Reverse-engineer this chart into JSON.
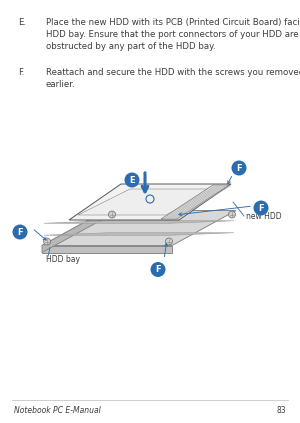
{
  "page_number": "83",
  "footer_left": "Notebook PC E-Manual",
  "background_color": "#ffffff",
  "text_color": "#3d3d3d",
  "blue_color": "#2b6cb0",
  "gray_line": "#999999",
  "label_e": "E",
  "label_f": "F",
  "item_e_letter": "E.",
  "item_f_letter": "F.",
  "item_e_text": "Place the new HDD with its PCB (Printed Circuit Board) facing the\nHDD bay. Ensure that the port connectors of your HDD are not\nobstructed by any part of the HDD bay.",
  "item_f_text": "Reattach and secure the HDD with the screws you removed\nearlier.",
  "label_new_hdd": "new HDD",
  "label_hdd_bay": "HDD bay",
  "font_size_body": 6.2,
  "font_size_label": 5.5,
  "font_size_footer": 5.5,
  "font_size_badge": 6.0,
  "fig_w": 3.0,
  "fig_h": 4.23,
  "dpi": 100
}
